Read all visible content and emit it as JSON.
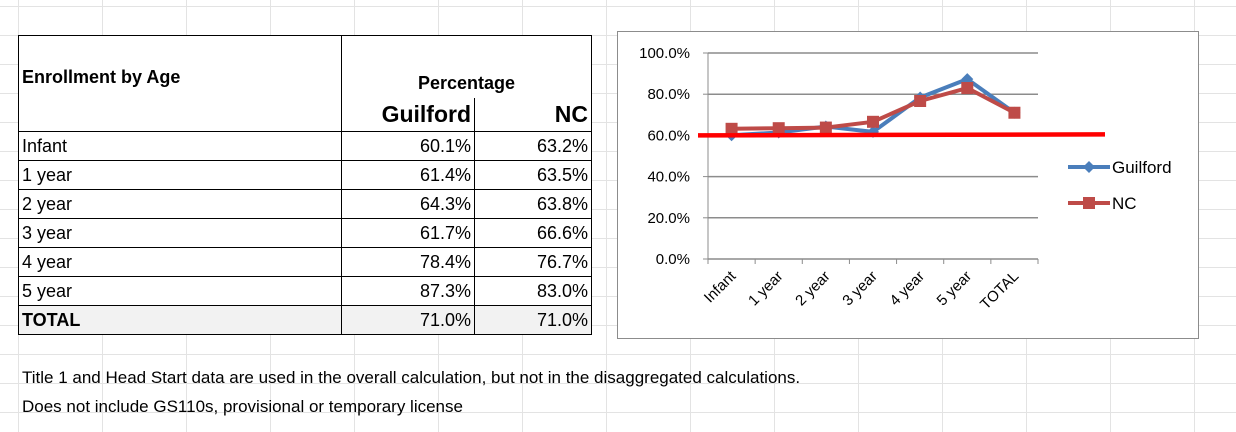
{
  "table": {
    "title": "Enrollment by Age",
    "group_header": "Percentage",
    "columns": [
      "Guilford",
      "NC"
    ],
    "rows": [
      {
        "label": "Infant",
        "guilford": "60.1%",
        "nc": "63.2%"
      },
      {
        "label": "1 year",
        "guilford": "61.4%",
        "nc": "63.5%"
      },
      {
        "label": "2 year",
        "guilford": "64.3%",
        "nc": "63.8%"
      },
      {
        "label": "3 year",
        "guilford": "61.7%",
        "nc": "66.6%"
      },
      {
        "label": "4 year",
        "guilford": "78.4%",
        "nc": "76.7%"
      },
      {
        "label": "5 year",
        "guilford": "87.3%",
        "nc": "83.0%"
      },
      {
        "label": "TOTAL",
        "guilford": "71.0%",
        "nc": "71.0%"
      }
    ]
  },
  "notes": [
    "Title 1 and Head Start data are used in the overall calculation, but not in the disaggregated calculations.",
    "Does not include GS110s, provisional or temporary license"
  ],
  "chart_data": {
    "type": "line",
    "categories": [
      "Infant",
      "1 year",
      "2 year",
      "3 year",
      "4 year",
      "5 year",
      "TOTAL"
    ],
    "series": [
      {
        "name": "Guilford",
        "values": [
          60.1,
          61.4,
          64.3,
          61.7,
          78.4,
          87.3,
          71.0
        ],
        "color": "#4a7ebb",
        "marker": "diamond"
      },
      {
        "name": "NC",
        "values": [
          63.2,
          63.5,
          63.8,
          66.6,
          76.7,
          83.0,
          71.0
        ],
        "color": "#be4b48",
        "marker": "square"
      }
    ],
    "reference_line": {
      "value": 60,
      "color": "#ff0000"
    },
    "y_ticks": [
      "0.0%",
      "20.0%",
      "40.0%",
      "60.0%",
      "80.0%",
      "100.0%"
    ],
    "ylim": [
      0,
      100
    ],
    "grid": "horizontal",
    "legend_position": "right"
  }
}
